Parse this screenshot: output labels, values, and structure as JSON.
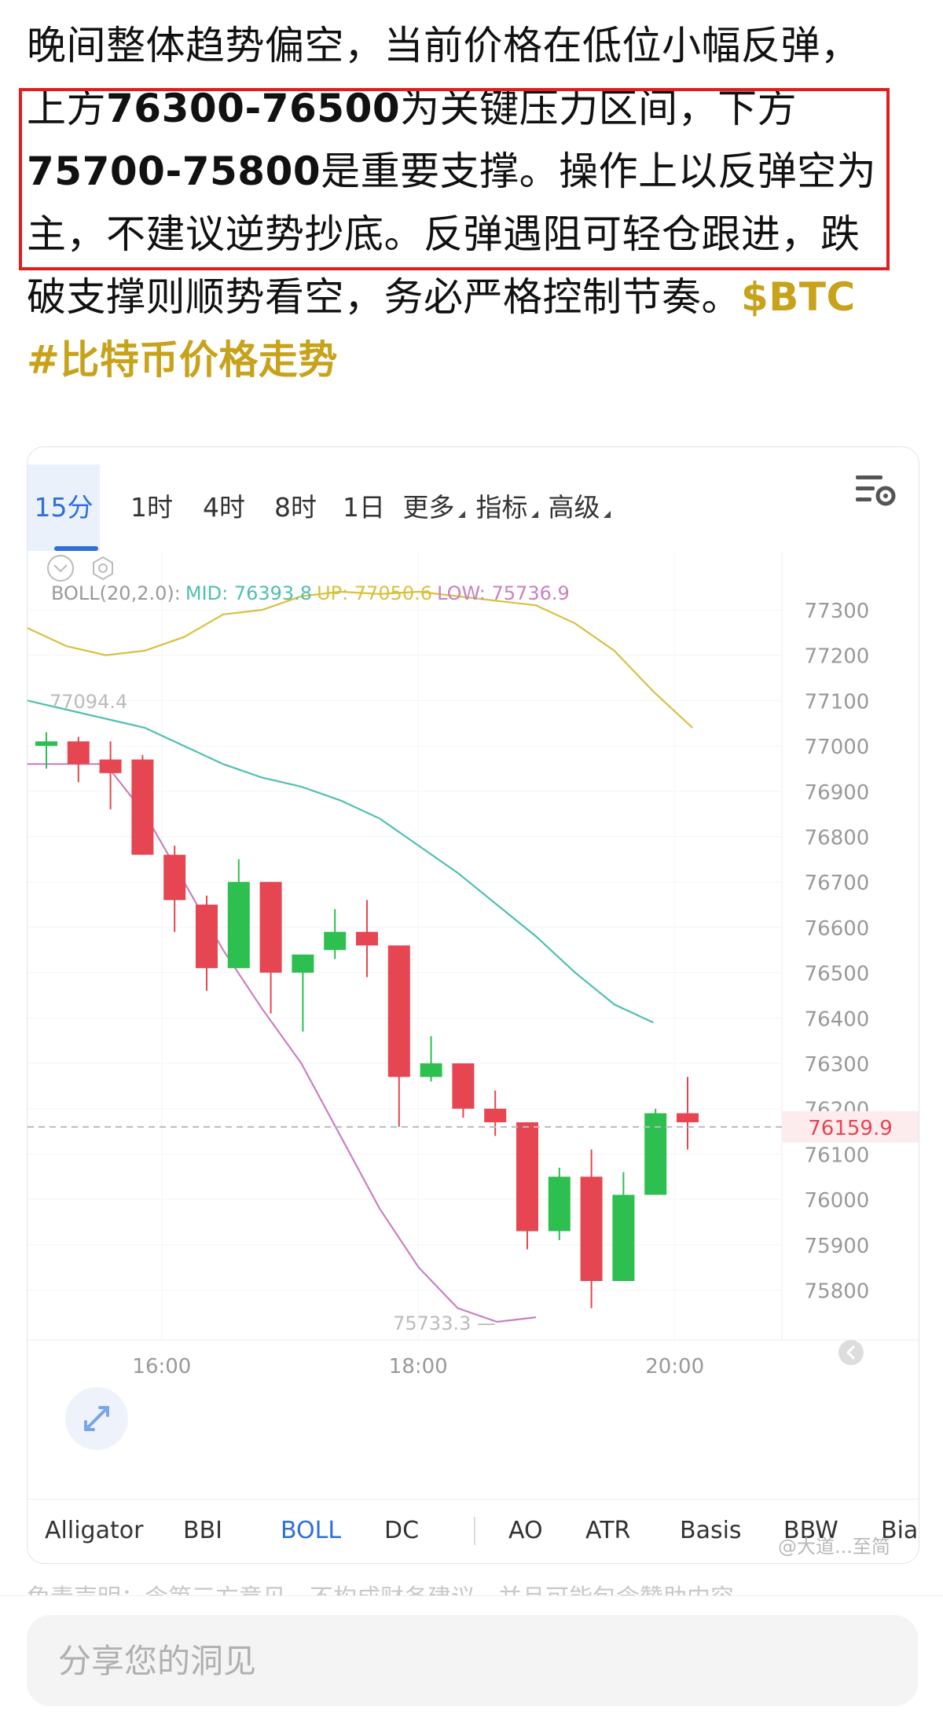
{
  "post": {
    "lines": [
      [
        {
          "t": "晚间整体趋势偏空，当前价格在低位小幅反弹，",
          "k": "txt"
        }
      ],
      [
        {
          "t": "上方",
          "k": "txt"
        },
        {
          "t": "76300-76500",
          "k": "num"
        },
        {
          "t": "为关键压力区间，下方",
          "k": "txt"
        }
      ],
      [
        {
          "t": "75700-75800",
          "k": "num"
        },
        {
          "t": "是重要支撑。操作上以反弹空为",
          "k": "txt"
        }
      ],
      [
        {
          "t": "主，不建议逆势抄底。反弹遇阻可轻仓跟进，跌",
          "k": "txt"
        }
      ],
      [
        {
          "t": "破支撑则顺势看空，务必严格控制节奏。",
          "k": "txt"
        },
        {
          "t": "$BTC",
          "k": "tag"
        }
      ],
      [
        {
          "t": "#",
          "k": "tag"
        },
        {
          "t": "比特币价格走势",
          "k": "tag"
        }
      ]
    ]
  },
  "chart_tabs": [
    {
      "label": "15分",
      "active": true
    },
    {
      "label": "1时",
      "active": false
    },
    {
      "label": "4时",
      "active": false
    },
    {
      "label": "8时",
      "active": false
    },
    {
      "label": "1日",
      "active": false
    },
    {
      "label": "更多",
      "caret": true
    },
    {
      "label": "指标",
      "caret": true
    },
    {
      "label": "高级",
      "caret": true
    }
  ],
  "icons": {
    "settings": "chart-settings-icon",
    "collapse": "collapse-circle-icon",
    "gear": "hexagon-gear-icon",
    "expand": "expand-arrows-icon",
    "scroll_end": "scroll-to-latest-icon"
  },
  "boll": {
    "label": "BOLL(20,2.0):",
    "mid": "MID: 76393.8",
    "up": "UP: 77050.6",
    "low": "LOW: 75736.9",
    "colors": {
      "mid": "#4fbfb0",
      "up": "#d9c040",
      "low": "#c980c0"
    }
  },
  "chart_data": {
    "type": "candlestick",
    "y_ticks": [
      77300,
      77200,
      77100,
      77000,
      76900,
      76800,
      76700,
      76600,
      76500,
      76400,
      76300,
      76200,
      76100,
      76000,
      75900,
      75800
    ],
    "ylim": [
      75690,
      77430
    ],
    "x_ticks": [
      {
        "idx": 3.6,
        "label": "16:00"
      },
      {
        "idx": 11.6,
        "label": "18:00"
      },
      {
        "idx": 19.6,
        "label": "20:00"
      }
    ],
    "current_price": "76159.9",
    "high_marker": "77094.4",
    "low_marker": "75733.3",
    "candles": [
      {
        "o": 77000,
        "h": 77030,
        "l": 76950,
        "c": 77010
      },
      {
        "o": 77010,
        "h": 77020,
        "l": 76920,
        "c": 76960
      },
      {
        "o": 76970,
        "h": 77010,
        "l": 76860,
        "c": 76940
      },
      {
        "o": 76970,
        "h": 76980,
        "l": 76760,
        "c": 76760
      },
      {
        "o": 76760,
        "h": 76780,
        "l": 76590,
        "c": 76660
      },
      {
        "o": 76650,
        "h": 76670,
        "l": 76460,
        "c": 76510
      },
      {
        "o": 76510,
        "h": 76750,
        "l": 76510,
        "c": 76700
      },
      {
        "o": 76700,
        "h": 76700,
        "l": 76410,
        "c": 76500
      },
      {
        "o": 76500,
        "h": 76540,
        "l": 76370,
        "c": 76540
      },
      {
        "o": 76550,
        "h": 76640,
        "l": 76530,
        "c": 76590
      },
      {
        "o": 76590,
        "h": 76660,
        "l": 76490,
        "c": 76560
      },
      {
        "o": 76560,
        "h": 76560,
        "l": 76160,
        "c": 76270
      },
      {
        "o": 76270,
        "h": 76360,
        "l": 76260,
        "c": 76300
      },
      {
        "o": 76300,
        "h": 76300,
        "l": 76180,
        "c": 76200
      },
      {
        "o": 76200,
        "h": 76240,
        "l": 76140,
        "c": 76170
      },
      {
        "o": 76170,
        "h": 76170,
        "l": 75890,
        "c": 75930
      },
      {
        "o": 75930,
        "h": 76070,
        "l": 75910,
        "c": 76050
      },
      {
        "o": 76050,
        "h": 76110,
        "l": 75760,
        "c": 75820
      },
      {
        "o": 75820,
        "h": 76060,
        "l": 75820,
        "c": 76010
      },
      {
        "o": 76010,
        "h": 76200,
        "l": 76010,
        "c": 76190
      },
      {
        "o": 76190,
        "h": 76270,
        "l": 76110,
        "c": 76170
      }
    ],
    "boll_up": [
      77260,
      77220,
      77200,
      77210,
      77240,
      77290,
      77300,
      77330,
      77340,
      77335,
      77340,
      77330,
      77320,
      77310,
      77270,
      77210,
      77120,
      77040
    ],
    "boll_mid": [
      77100,
      77080,
      77060,
      77040,
      77000,
      76960,
      76930,
      76910,
      76880,
      76840,
      76780,
      76720,
      76650,
      76580,
      76500,
      76430,
      76390
    ],
    "boll_low": [
      76960,
      76960,
      76960,
      76850,
      76700,
      76550,
      76420,
      76300,
      76140,
      75980,
      75850,
      75760,
      75730,
      75740
    ]
  },
  "indicators": [
    "Alligator",
    "BBI",
    "BOLL",
    "DC",
    "AO",
    "ATR",
    "Basis",
    "BBW",
    "Bia"
  ],
  "active_indicator": "BOLL",
  "watermark": "@大道...至简",
  "disclaimer": "免责声明：含第三方意见，不构成财务建议，并且可能包含赞助内容。",
  "share": {
    "placeholder": "分享您的洞见"
  }
}
